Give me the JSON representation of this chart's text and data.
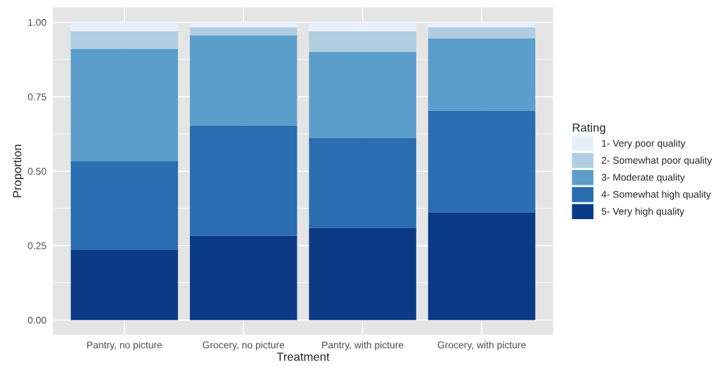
{
  "chart_data": {
    "type": "bar",
    "stacked": true,
    "xlabel": "Treatment",
    "ylabel": "Proportion",
    "legend_title": "Rating",
    "categories": [
      "Pantry, no picture",
      "Grocery, no picture",
      "Pantry, with picture",
      "Grocery, with picture"
    ],
    "series": [
      {
        "name": "5- Very high quality",
        "color": "#0b3a87",
        "values": [
          0.235,
          0.283,
          0.31,
          0.36
        ]
      },
      {
        "name": "4- Somewhat high quality",
        "color": "#2a6db0",
        "values": [
          0.299,
          0.37,
          0.302,
          0.343
        ]
      },
      {
        "name": "3- Moderate quality",
        "color": "#5b9ecb",
        "values": [
          0.377,
          0.303,
          0.289,
          0.243
        ]
      },
      {
        "name": "2- Somewhat poor quality",
        "color": "#b0cde1",
        "values": [
          0.059,
          0.027,
          0.069,
          0.037
        ]
      },
      {
        "name": "1- Very poor quality",
        "color": "#e8effc",
        "values": [
          0.03,
          0.017,
          0.03,
          0.017
        ]
      }
    ],
    "ylim": [
      -0.05,
      1.05
    ],
    "yticks": [
      {
        "value": 0,
        "label": "0.00"
      },
      {
        "value": 0.25,
        "label": "0.25"
      },
      {
        "value": 0.5,
        "label": "0.50"
      },
      {
        "value": 0.75,
        "label": "0.75"
      },
      {
        "value": 1,
        "label": "1.00"
      }
    ],
    "grid": true,
    "legend": "right"
  }
}
